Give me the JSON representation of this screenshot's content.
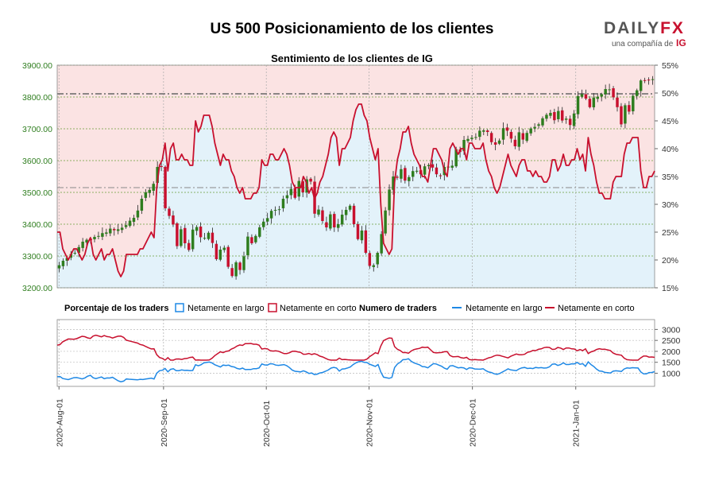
{
  "header": {
    "title": "US 500 Posicionamiento de los clientes",
    "logo_main": "DAILY",
    "logo_fx": "FX",
    "logo_sub": "una compañía de",
    "logo_ig": "IG"
  },
  "colors": {
    "long": "#1e88e5",
    "short": "#c8102e",
    "up_candle": "#2e7d1e",
    "down_candle": "#c8102e",
    "bg_long": "#e3f2fa",
    "bg_short": "#fbe3e3",
    "grid": "#6a9f3a"
  },
  "chart_data": [
    {
      "type": "candlestick",
      "title": "Sentimiento de los clientes de IG",
      "y_left": {
        "ticks": [
          "3900.00",
          "3800.00",
          "3700.00",
          "3600.00",
          "3500.00",
          "3400.00",
          "3300.00",
          "3200.00"
        ],
        "range": [
          3200,
          3900
        ]
      },
      "y_right": {
        "ticks": [
          "55%",
          "50%",
          "45%",
          "40%",
          "35%",
          "30%",
          "25%",
          "20%",
          "15%"
        ],
        "range": [
          15,
          55
        ]
      },
      "reference_levels": [
        3810,
        3515
      ],
      "series": [
        {
          "name": "Netamente en corto",
          "unit": "%",
          "values": [
            25,
            25,
            22,
            21,
            20,
            21,
            22,
            22,
            21,
            20,
            21,
            23,
            24,
            21,
            20,
            21,
            22,
            20,
            21,
            21,
            22,
            20,
            18,
            17,
            18,
            21,
            21,
            21,
            21,
            21,
            22,
            22,
            23,
            24,
            25,
            24,
            33,
            37,
            38,
            41,
            36,
            40,
            41,
            38,
            38,
            39,
            38,
            38,
            37,
            37,
            45,
            43,
            44,
            46,
            46,
            46,
            44,
            41,
            39,
            37,
            39,
            38,
            38,
            36,
            35,
            33,
            32,
            33,
            31,
            31,
            31,
            32,
            32,
            33,
            38,
            37,
            37,
            39,
            39,
            38,
            38,
            39,
            40,
            39,
            37,
            34,
            33,
            33,
            33,
            35,
            34,
            32,
            33,
            31,
            32,
            34,
            35,
            37,
            39,
            42,
            43,
            42,
            37,
            40,
            40,
            41,
            42,
            45,
            47,
            48,
            48,
            46,
            45,
            42,
            40,
            38,
            40,
            30,
            23,
            22,
            21,
            22,
            34,
            38,
            40,
            43,
            43,
            44,
            41,
            39,
            38,
            37,
            35,
            35,
            34,
            37,
            40,
            40,
            39,
            38,
            36,
            35,
            40,
            41,
            40,
            39,
            40,
            40,
            38,
            41,
            41,
            40,
            40,
            40,
            41,
            38,
            36,
            35,
            33,
            32,
            33,
            35,
            37,
            39,
            37,
            36,
            35,
            37,
            38,
            38,
            36,
            36,
            35,
            36,
            35,
            35,
            34,
            34,
            35,
            38,
            38,
            36,
            37,
            39,
            37,
            37,
            38,
            38,
            40,
            38,
            39,
            36,
            42,
            39,
            37,
            34,
            32,
            32,
            31,
            31,
            31,
            34,
            35,
            35,
            35,
            39,
            41,
            41,
            42,
            42,
            42,
            36,
            33,
            33,
            35,
            35,
            36
          ]
        }
      ],
      "candles_note": "daily US 500 price candles, Aug 2020 – Jan 2021",
      "close": [
        3271,
        3285,
        3294,
        3306,
        3310,
        3328,
        3345,
        3351,
        3349,
        3360,
        3363,
        3372,
        3374,
        3386,
        3381,
        3384,
        3389,
        3397,
        3411,
        3420,
        3443,
        3480,
        3500,
        3508,
        3527,
        3580,
        3580,
        3450,
        3426,
        3399,
        3331,
        3384,
        3340,
        3319,
        3383,
        3391,
        3359,
        3357,
        3373,
        3341,
        3290,
        3320,
        3326,
        3266,
        3237,
        3280,
        3256,
        3299,
        3361,
        3340,
        3363,
        3390,
        3408,
        3419,
        3442,
        3445,
        3447,
        3480,
        3491,
        3511,
        3483,
        3536,
        3500,
        3541,
        3534,
        3433,
        3446,
        3410,
        3390,
        3431,
        3390,
        3400,
        3430,
        3445,
        3458,
        3400,
        3353,
        3380,
        3310,
        3269,
        3271,
        3310,
        3369,
        3443,
        3509,
        3550,
        3546,
        3573,
        3537,
        3548,
        3567,
        3568,
        3557,
        3582,
        3586,
        3578,
        3557,
        3551,
        3580,
        3581,
        3584,
        3636,
        3627,
        3665,
        3668,
        3672,
        3674,
        3694,
        3695,
        3690,
        3658,
        3650,
        3663,
        3702,
        3694,
        3669,
        3645,
        3689,
        3666,
        3687,
        3701,
        3706,
        3714,
        3733,
        3744,
        3750,
        3727,
        3756,
        3726,
        3732,
        3712,
        3748,
        3803,
        3809,
        3795,
        3768,
        3798,
        3801,
        3809,
        3825,
        3824,
        3799,
        3768,
        3714,
        3774,
        3754,
        3804,
        3821,
        3852,
        3851,
        3853,
        3856
      ]
    },
    {
      "type": "line",
      "title": "",
      "y_right": {
        "ticks": [
          "3000",
          "2500",
          "2000",
          "1500",
          "1000"
        ]
      },
      "x_dates": [
        "2020-Aug-01",
        "2020-Sep-01",
        "2020-Oct-01",
        "2020-Nov-01",
        "2020-Dec-01",
        "2021-Jan-01"
      ],
      "series": [
        {
          "name": "Netamente en largo",
          "unit": "traders"
        },
        {
          "name": "Netamente en corto",
          "unit": "traders"
        }
      ]
    }
  ],
  "legend": {
    "pct_label": "Porcentaje de los traders",
    "num_label": "Numero de traders",
    "long": "Netamente en largo",
    "short": "Netamente en corto"
  }
}
